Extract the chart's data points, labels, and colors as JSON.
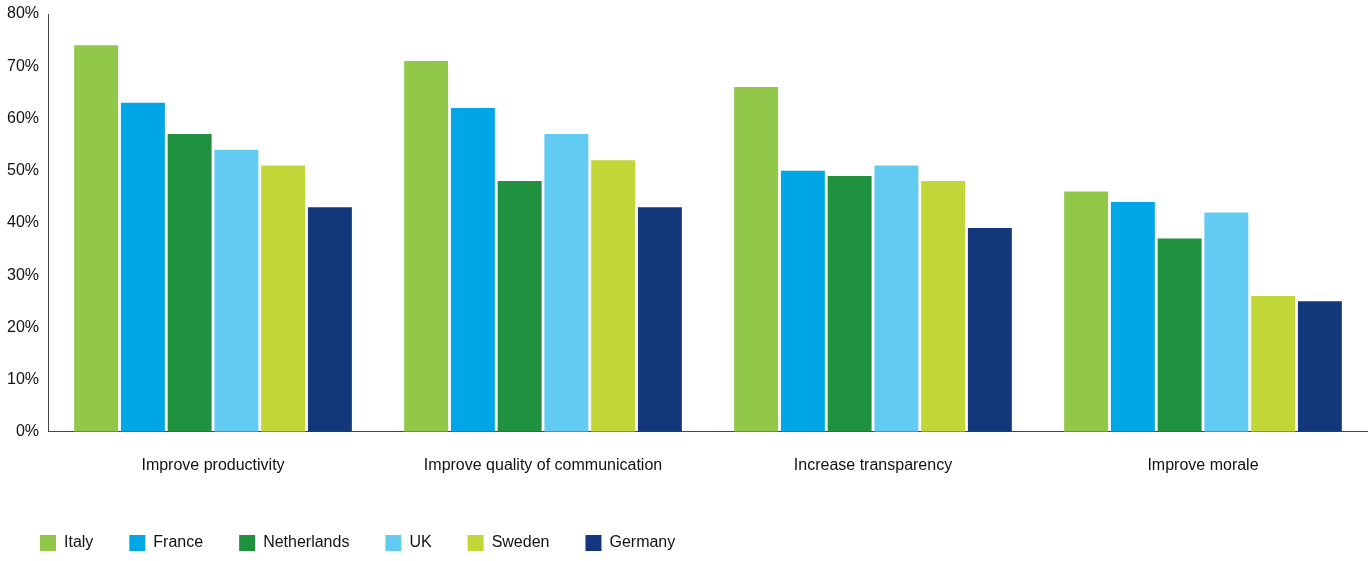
{
  "chart_data": {
    "type": "bar",
    "categories": [
      "Improve productivity",
      "Improve quality of communication",
      "Increase transparency",
      "Improve morale"
    ],
    "series": [
      {
        "name": "Italy",
        "color": "#92c84a",
        "values": [
          74,
          71,
          66,
          46
        ]
      },
      {
        "name": "France",
        "color": "#00a6e6",
        "values": [
          63,
          62,
          50,
          44
        ]
      },
      {
        "name": "Netherlands",
        "color": "#20913f",
        "values": [
          57,
          48,
          49,
          37
        ]
      },
      {
        "name": "UK",
        "color": "#62cbf2",
        "values": [
          54,
          57,
          51,
          42
        ]
      },
      {
        "name": "Sweden",
        "color": "#c1d737",
        "values": [
          51,
          52,
          48,
          26
        ]
      },
      {
        "name": "Germany",
        "color": "#13377a",
        "values": [
          43,
          43,
          39,
          25
        ]
      }
    ],
    "ylim": [
      0,
      80
    ],
    "yticks": [
      {
        "value": 0,
        "label": "0%"
      },
      {
        "value": 10,
        "label": "10%"
      },
      {
        "value": 20,
        "label": "20%"
      },
      {
        "value": 30,
        "label": "30%"
      },
      {
        "value": 40,
        "label": "40%"
      },
      {
        "value": 50,
        "label": "50%"
      },
      {
        "value": 60,
        "label": "60%"
      },
      {
        "value": 70,
        "label": "70%"
      },
      {
        "value": 80,
        "label": "80%"
      }
    ],
    "grid": false,
    "legend": "bottom left"
  }
}
